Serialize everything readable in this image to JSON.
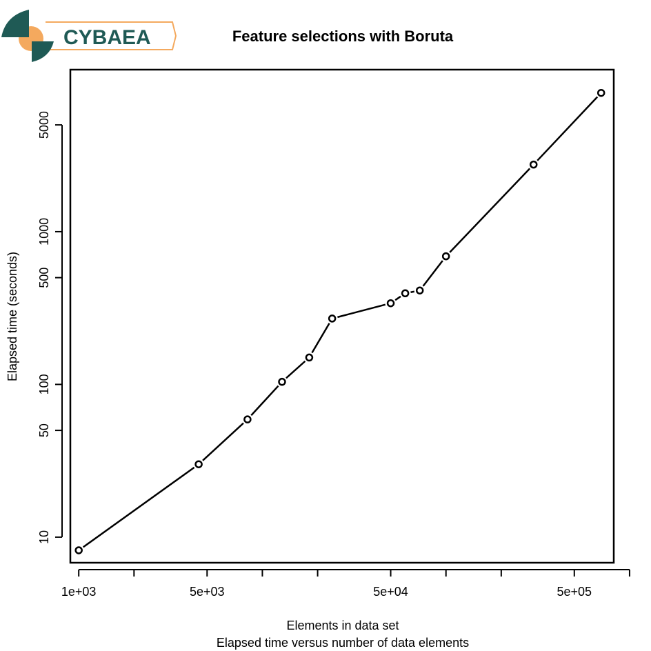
{
  "logo": {
    "text": "CYBAEA",
    "primary_color": "#1f5a55",
    "accent_color": "#f4a95e"
  },
  "chart_data": {
    "type": "line",
    "title": "Feature selections with Boruta",
    "subtitle": "Elapsed time versus number of data elements",
    "xlabel": "Elements in data set",
    "ylabel": "Elapsed time (seconds)",
    "x_scale": "log",
    "y_scale": "log",
    "xlim": [
      900,
      820000
    ],
    "ylim": [
      6.8,
      11500
    ],
    "grid": false,
    "x_ticks": [
      1000,
      2000,
      5000,
      10000,
      20000,
      50000,
      100000,
      200000,
      500000,
      1000000
    ],
    "x_tick_labels": [
      "1e+03",
      "",
      "5e+03",
      "",
      "",
      "5e+04",
      "",
      "",
      "5e+05",
      ""
    ],
    "y_ticks": [
      10,
      50,
      100,
      500,
      1000,
      5000
    ],
    "y_tick_labels": [
      "10",
      "50",
      "100",
      "500",
      "1000",
      "5000"
    ],
    "series": [
      {
        "x": [
          1000,
          4500,
          8300,
          12800,
          18000,
          24000,
          50000,
          60000,
          72000,
          100000,
          300000,
          700000
        ],
        "y": [
          8.2,
          30,
          59,
          104,
          150,
          270,
          340,
          395,
          412,
          690,
          2750,
          8100
        ],
        "marker": "open-circle",
        "color": "#000000"
      }
    ]
  }
}
